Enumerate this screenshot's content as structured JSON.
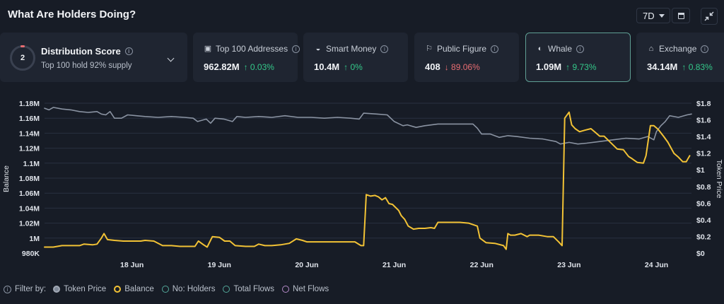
{
  "header": {
    "title": "What Are Holders Doing?",
    "period": "7D"
  },
  "distribution": {
    "score": "2",
    "title": "Distribution Score",
    "subtitle": "Top 100 hold 92% supply"
  },
  "cards": [
    {
      "label": "Top 100 Addresses",
      "value": "962.82M",
      "change": "↑ 0.03%",
      "dir": "up",
      "icon": "wallet-icon"
    },
    {
      "label": "Smart Money",
      "value": "10.4M",
      "change": "↑ 0%",
      "dir": "up",
      "icon": "brain-icon"
    },
    {
      "label": "Public Figure",
      "value": "408",
      "change": "↓ 89.06%",
      "dir": "down",
      "icon": "megaphone-icon"
    },
    {
      "label": "Whale",
      "value": "1.09M",
      "change": "↑ 9.73%",
      "dir": "up",
      "icon": "whale-icon"
    },
    {
      "label": "Exchange",
      "value": "34.14M",
      "change": "↑ 0.83%",
      "dir": "up",
      "icon": "bank-icon"
    }
  ],
  "legend": {
    "filter_label": "Filter by:",
    "items": [
      "Token Price",
      "Balance",
      "No: Holders",
      "Total Flows",
      "Net Flows"
    ]
  },
  "chart_data": {
    "type": "line",
    "xlabel": "",
    "ylabel_left": "Balance",
    "ylabel_right": "Token Price",
    "ylim_left": [
      980000,
      1180000
    ],
    "ylim_right": [
      0,
      1.8
    ],
    "left_ticks": [
      "980K",
      "1M",
      "1.02M",
      "1.04M",
      "1.06M",
      "1.08M",
      "1.1M",
      "1.12M",
      "1.14M",
      "1.16M",
      "1.18M"
    ],
    "right_ticks": [
      "$0",
      "$0.2",
      "$0.4",
      "$0.6",
      "$0.8",
      "$1",
      "$1.2",
      "$1.4",
      "$1.6",
      "$1.8"
    ],
    "x_ticks": [
      {
        "t": 1.0,
        "label": "18 Jun"
      },
      {
        "t": 2.0,
        "label": "19 Jun"
      },
      {
        "t": 3.0,
        "label": "20 Jun"
      },
      {
        "t": 4.0,
        "label": "21 Jun"
      },
      {
        "t": 5.0,
        "label": "22 Jun"
      },
      {
        "t": 6.0,
        "label": "23 Jun"
      },
      {
        "t": 7.0,
        "label": "24 Jun"
      }
    ],
    "grid": true,
    "colors": {
      "token_price": "#8a93a2",
      "balance": "#f2c235"
    },
    "series": [
      {
        "name": "Token Price",
        "axis": "right",
        "points": [
          [
            0.0,
            1.74
          ],
          [
            0.05,
            1.72
          ],
          [
            0.1,
            1.75
          ],
          [
            0.2,
            1.73
          ],
          [
            0.3,
            1.72
          ],
          [
            0.4,
            1.7
          ],
          [
            0.5,
            1.69
          ],
          [
            0.6,
            1.7
          ],
          [
            0.65,
            1.67
          ],
          [
            0.7,
            1.66
          ],
          [
            0.75,
            1.7
          ],
          [
            0.8,
            1.62
          ],
          [
            0.88,
            1.62
          ],
          [
            0.95,
            1.66
          ],
          [
            1.05,
            1.65
          ],
          [
            1.15,
            1.64
          ],
          [
            1.3,
            1.63
          ],
          [
            1.45,
            1.64
          ],
          [
            1.6,
            1.63
          ],
          [
            1.7,
            1.62
          ],
          [
            1.75,
            1.58
          ],
          [
            1.85,
            1.61
          ],
          [
            1.9,
            1.56
          ],
          [
            1.95,
            1.62
          ],
          [
            2.05,
            1.61
          ],
          [
            2.15,
            1.58
          ],
          [
            2.2,
            1.64
          ],
          [
            2.3,
            1.63
          ],
          [
            2.45,
            1.64
          ],
          [
            2.6,
            1.63
          ],
          [
            2.75,
            1.65
          ],
          [
            2.9,
            1.63
          ],
          [
            3.05,
            1.63
          ],
          [
            3.2,
            1.62
          ],
          [
            3.35,
            1.63
          ],
          [
            3.5,
            1.62
          ],
          [
            3.6,
            1.61
          ],
          [
            3.65,
            1.68
          ],
          [
            3.8,
            1.67
          ],
          [
            3.92,
            1.66
          ],
          [
            4.0,
            1.58
          ],
          [
            4.1,
            1.53
          ],
          [
            4.15,
            1.54
          ],
          [
            4.25,
            1.51
          ],
          [
            4.35,
            1.53
          ],
          [
            4.5,
            1.55
          ],
          [
            4.65,
            1.55
          ],
          [
            4.8,
            1.55
          ],
          [
            4.9,
            1.55
          ],
          [
            4.95,
            1.5
          ],
          [
            5.0,
            1.43
          ],
          [
            5.1,
            1.43
          ],
          [
            5.2,
            1.39
          ],
          [
            5.3,
            1.41
          ],
          [
            5.4,
            1.4
          ],
          [
            5.55,
            1.38
          ],
          [
            5.7,
            1.37
          ],
          [
            5.85,
            1.34
          ],
          [
            5.9,
            1.31
          ],
          [
            6.0,
            1.33
          ],
          [
            6.1,
            1.31
          ],
          [
            6.2,
            1.32
          ],
          [
            6.35,
            1.34
          ],
          [
            6.5,
            1.36
          ],
          [
            6.65,
            1.38
          ],
          [
            6.8,
            1.37
          ],
          [
            6.9,
            1.4
          ],
          [
            6.97,
            1.36
          ],
          [
            7.0,
            1.46
          ],
          [
            7.05,
            1.53
          ],
          [
            7.1,
            1.58
          ],
          [
            7.15,
            1.65
          ],
          [
            7.25,
            1.63
          ],
          [
            7.35,
            1.66
          ],
          [
            7.4,
            1.67
          ]
        ]
      },
      {
        "name": "Balance",
        "axis": "left",
        "points": [
          [
            0.0,
            988000
          ],
          [
            0.05,
            988000
          ],
          [
            0.1,
            988000
          ],
          [
            0.2,
            990000
          ],
          [
            0.3,
            990000
          ],
          [
            0.4,
            990000
          ],
          [
            0.45,
            992000
          ],
          [
            0.55,
            991000
          ],
          [
            0.6,
            992000
          ],
          [
            0.65,
            1000000
          ],
          [
            0.68,
            1006000
          ],
          [
            0.72,
            998000
          ],
          [
            0.8,
            997000
          ],
          [
            0.9,
            996000
          ],
          [
            1.0,
            996000
          ],
          [
            1.1,
            996000
          ],
          [
            1.15,
            997000
          ],
          [
            1.25,
            996000
          ],
          [
            1.35,
            990000
          ],
          [
            1.45,
            990000
          ],
          [
            1.55,
            989000
          ],
          [
            1.65,
            989000
          ],
          [
            1.72,
            989000
          ],
          [
            1.76,
            996000
          ],
          [
            1.82,
            991000
          ],
          [
            1.86,
            988000
          ],
          [
            1.92,
            1002000
          ],
          [
            2.0,
            1001000
          ],
          [
            2.06,
            996000
          ],
          [
            2.12,
            996000
          ],
          [
            2.18,
            990000
          ],
          [
            2.3,
            989000
          ],
          [
            2.4,
            989000
          ],
          [
            2.45,
            992000
          ],
          [
            2.52,
            990000
          ],
          [
            2.6,
            990000
          ],
          [
            2.7,
            991000
          ],
          [
            2.8,
            993000
          ],
          [
            2.88,
            999000
          ],
          [
            2.95,
            997000
          ],
          [
            3.0,
            995000
          ],
          [
            3.1,
            995000
          ],
          [
            3.25,
            995000
          ],
          [
            3.4,
            995000
          ],
          [
            3.55,
            995000
          ],
          [
            3.62,
            990000
          ],
          [
            3.65,
            990000
          ],
          [
            3.68,
            1058000
          ],
          [
            3.73,
            1056000
          ],
          [
            3.78,
            1057000
          ],
          [
            3.82,
            1055000
          ],
          [
            3.86,
            1051000
          ],
          [
            3.9,
            1054000
          ],
          [
            3.94,
            1046000
          ],
          [
            3.98,
            1045000
          ],
          [
            4.05,
            1037000
          ],
          [
            4.08,
            1030000
          ],
          [
            4.12,
            1025000
          ],
          [
            4.16,
            1016000
          ],
          [
            4.22,
            1012000
          ],
          [
            4.28,
            1013000
          ],
          [
            4.35,
            1013000
          ],
          [
            4.42,
            1014000
          ],
          [
            4.46,
            1013000
          ],
          [
            4.5,
            1021000
          ],
          [
            4.6,
            1021000
          ],
          [
            4.75,
            1021000
          ],
          [
            4.85,
            1020000
          ],
          [
            4.9,
            1018000
          ],
          [
            4.95,
            1016000
          ],
          [
            4.98,
            1000000
          ],
          [
            5.05,
            994000
          ],
          [
            5.15,
            993000
          ],
          [
            5.25,
            990000
          ],
          [
            5.28,
            985000
          ],
          [
            5.3,
            1006000
          ],
          [
            5.33,
            1004000
          ],
          [
            5.38,
            1004000
          ],
          [
            5.45,
            1006000
          ],
          [
            5.52,
            1002000
          ],
          [
            5.55,
            1004000
          ],
          [
            5.65,
            1004000
          ],
          [
            5.75,
            1002000
          ],
          [
            5.82,
            1002000
          ],
          [
            5.88,
            995000
          ],
          [
            5.92,
            990000
          ],
          [
            5.95,
            1160000
          ],
          [
            6.0,
            1168000
          ],
          [
            6.03,
            1151000
          ],
          [
            6.07,
            1146000
          ],
          [
            6.12,
            1142000
          ],
          [
            6.18,
            1144000
          ],
          [
            6.25,
            1146000
          ],
          [
            6.3,
            1141000
          ],
          [
            6.35,
            1136000
          ],
          [
            6.4,
            1136000
          ],
          [
            6.48,
            1127000
          ],
          [
            6.55,
            1119000
          ],
          [
            6.62,
            1118000
          ],
          [
            6.68,
            1109000
          ],
          [
            6.72,
            1106000
          ],
          [
            6.78,
            1101000
          ],
          [
            6.85,
            1100000
          ],
          [
            6.88,
            1110000
          ],
          [
            6.93,
            1150000
          ],
          [
            6.97,
            1150000
          ],
          [
            7.02,
            1145000
          ],
          [
            7.08,
            1136000
          ],
          [
            7.13,
            1128000
          ],
          [
            7.2,
            1113000
          ],
          [
            7.25,
            1108000
          ],
          [
            7.3,
            1102000
          ],
          [
            7.34,
            1102000
          ],
          [
            7.38,
            1110000
          ]
        ]
      }
    ]
  }
}
